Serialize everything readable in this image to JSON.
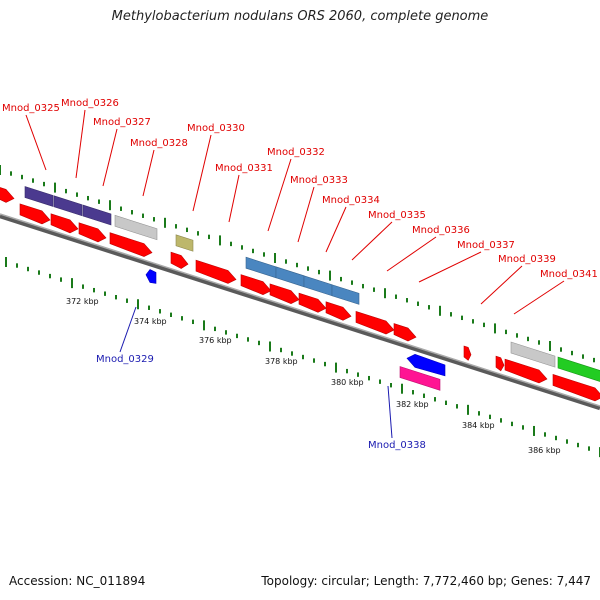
{
  "title": "Methylobacterium nodulans ORS 2060, complete genome",
  "footer": {
    "accession": "Accession: NC_011894",
    "summary": "Topology: circular; Length: 7,772,460 bp; Genes: 7,447"
  },
  "colors": {
    "red": "#ff0000",
    "blue": "#0000ff",
    "purple": "#4b3a8f",
    "gray": "#c8c8c8",
    "khaki": "#bdb76b",
    "steelblue": "#4a86c0",
    "pink": "#ff1493",
    "green": "#22cc22",
    "tick": "#1a7a1a",
    "label_red": "#e00000",
    "label_blue": "#1a1ab0"
  },
  "scale_labels": [
    "372 kbp",
    "374 kbp",
    "376 kbp",
    "378 kbp",
    "380 kbp",
    "382 kbp",
    "384 kbp",
    "386 kbp"
  ],
  "gene_labels": [
    {
      "text": "Mnod_0325",
      "color": "red"
    },
    {
      "text": "Mnod_0326",
      "color": "red"
    },
    {
      "text": "Mnod_0327",
      "color": "red"
    },
    {
      "text": "Mnod_0328",
      "color": "red"
    },
    {
      "text": "Mnod_0330",
      "color": "red"
    },
    {
      "text": "Mnod_0331",
      "color": "red"
    },
    {
      "text": "Mnod_0332",
      "color": "red"
    },
    {
      "text": "Mnod_0333",
      "color": "red"
    },
    {
      "text": "Mnod_0334",
      "color": "red"
    },
    {
      "text": "Mnod_0335",
      "color": "red"
    },
    {
      "text": "Mnod_0336",
      "color": "red"
    },
    {
      "text": "Mnod_0337",
      "color": "red"
    },
    {
      "text": "Mnod_0339",
      "color": "red"
    },
    {
      "text": "Mnod_0341",
      "color": "red"
    },
    {
      "text": "Mnod_0329",
      "color": "blue"
    },
    {
      "text": "Mnod_0338",
      "color": "blue"
    }
  ]
}
